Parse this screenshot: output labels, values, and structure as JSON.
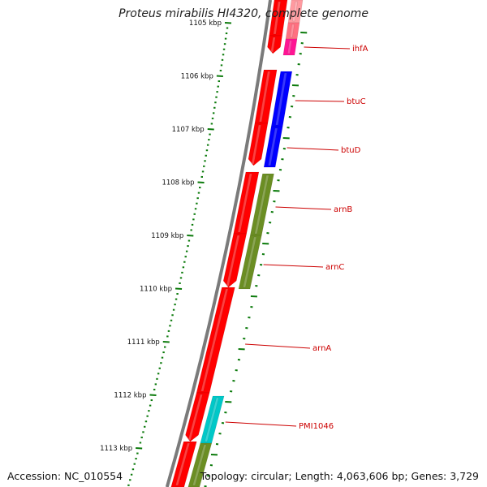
{
  "title": "Proteus mirabilis HI4320, complete genome",
  "accession": "Accession: NC_010554",
  "topology": "Topology: circular; Length: 4,063,606 bp; Genes: 3,729",
  "colors": {
    "backbone": "#7a7a7a",
    "tick": "#0b7a0b",
    "gene_label": "#cc0000",
    "cds_outer": "#ff0000",
    "cds_ihfA": "#ff1493",
    "cds_btu": "#0000ff",
    "cds_arn": "#6b8e23",
    "cds_pmi": "#00c8c8"
  },
  "scale": {
    "major_ticks": [
      {
        "kbp": 1105,
        "label": "1105 kbp"
      },
      {
        "kbp": 1106,
        "label": "1106 kbp"
      },
      {
        "kbp": 1107,
        "label": "1107 kbp"
      },
      {
        "kbp": 1108,
        "label": "1108 kbp"
      },
      {
        "kbp": 1109,
        "label": "1109 kbp"
      },
      {
        "kbp": 1110,
        "label": "1110 kbp"
      },
      {
        "kbp": 1111,
        "label": "1111 kbp"
      },
      {
        "kbp": 1112,
        "label": "1112 kbp"
      },
      {
        "kbp": 1113,
        "label": "1113 kbp"
      }
    ]
  },
  "genes": [
    {
      "name": "ihfA",
      "label": "ihfA"
    },
    {
      "name": "btuC",
      "label": "btuC"
    },
    {
      "name": "btuD",
      "label": "btuD"
    },
    {
      "name": "arnB",
      "label": "arnB"
    },
    {
      "name": "arnC",
      "label": "arnC"
    },
    {
      "name": "arnA",
      "label": "arnA"
    },
    {
      "name": "PMI1046",
      "label": "PMI1046"
    }
  ]
}
